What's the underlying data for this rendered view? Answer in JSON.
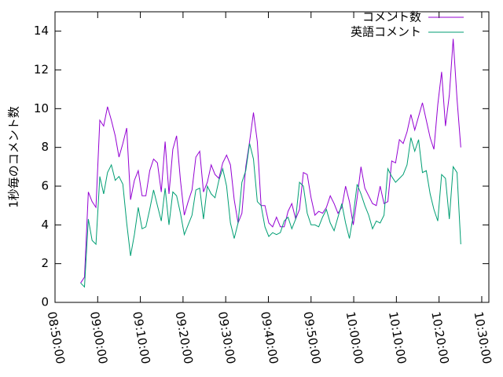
{
  "chart_data": {
    "type": "line",
    "ylabel": "1秒毎のコメント数",
    "x": [
      "08:56:00",
      "08:56:54",
      "08:57:48",
      "08:58:42",
      "08:59:36",
      "09:00:30",
      "09:01:24",
      "09:02:18",
      "09:03:12",
      "09:04:06",
      "09:05:00",
      "09:05:54",
      "09:06:48",
      "09:07:42",
      "09:08:36",
      "09:09:30",
      "09:10:24",
      "09:11:18",
      "09:12:12",
      "09:13:06",
      "09:14:00",
      "09:14:54",
      "09:15:48",
      "09:16:42",
      "09:17:36",
      "09:18:30",
      "09:19:24",
      "09:20:18",
      "09:21:12",
      "09:22:06",
      "09:23:00",
      "09:23:54",
      "09:24:48",
      "09:25:42",
      "09:26:36",
      "09:27:30",
      "09:28:24",
      "09:29:18",
      "09:30:12",
      "09:31:06",
      "09:32:00",
      "09:32:54",
      "09:33:48",
      "09:34:42",
      "09:35:36",
      "09:36:30",
      "09:37:24",
      "09:38:18",
      "09:39:12",
      "09:40:06",
      "09:41:00",
      "09:41:54",
      "09:42:48",
      "09:43:42",
      "09:44:36",
      "09:45:30",
      "09:46:24",
      "09:47:18",
      "09:48:12",
      "09:49:06",
      "09:50:00",
      "09:50:54",
      "09:51:48",
      "09:52:42",
      "09:53:36",
      "09:54:30",
      "09:55:24",
      "09:56:18",
      "09:57:12",
      "09:58:06",
      "09:59:00",
      "09:59:54",
      "10:00:48",
      "10:01:42",
      "10:02:36",
      "10:03:30",
      "10:04:24",
      "10:05:18",
      "10:06:12",
      "10:07:06",
      "10:08:00",
      "10:08:54",
      "10:09:48",
      "10:10:42",
      "10:11:36",
      "10:12:30",
      "10:13:24",
      "10:14:18",
      "10:15:12",
      "10:16:06",
      "10:17:00",
      "10:17:54",
      "10:18:48",
      "10:19:42",
      "10:20:36",
      "10:21:30",
      "10:22:24",
      "10:23:18",
      "10:24:12",
      "10:25:06"
    ],
    "series": [
      {
        "name": "コメント数",
        "color": "#9400d3",
        "values": [
          1.0,
          1.3,
          5.7,
          5.2,
          4.9,
          9.4,
          9.1,
          10.1,
          9.4,
          8.6,
          7.5,
          8.2,
          9.0,
          5.3,
          6.3,
          6.8,
          5.5,
          5.5,
          6.8,
          7.4,
          7.2,
          5.7,
          8.3,
          5.6,
          7.9,
          8.6,
          6.3,
          4.5,
          5.2,
          5.8,
          7.5,
          7.8,
          5.7,
          6.2,
          7.1,
          6.6,
          6.4,
          7.2,
          7.6,
          7.1,
          5.3,
          4.1,
          4.6,
          7.0,
          8.3,
          9.8,
          8.3,
          5.0,
          5.0,
          4.1,
          3.9,
          4.4,
          3.9,
          3.9,
          4.7,
          5.1,
          4.3,
          4.8,
          6.7,
          6.6,
          5.4,
          4.5,
          4.7,
          4.6,
          4.9,
          5.5,
          5.1,
          4.6,
          4.9,
          6.0,
          5.2,
          4.0,
          5.4,
          7.0,
          5.9,
          5.5,
          5.1,
          5.0,
          6.0,
          5.1,
          5.2,
          7.3,
          7.2,
          8.4,
          8.2,
          8.8,
          9.7,
          8.9,
          9.6,
          10.3,
          9.4,
          8.5,
          7.9,
          10.2,
          11.9,
          9.1,
          10.7,
          13.6,
          10.5,
          8.0
        ]
      },
      {
        "name": "英語コメント",
        "color": "#009e73",
        "values": [
          1.0,
          0.8,
          4.3,
          3.2,
          3.0,
          6.5,
          5.6,
          6.7,
          7.1,
          6.3,
          6.5,
          6.1,
          4.1,
          2.4,
          3.5,
          4.9,
          3.8,
          3.9,
          4.8,
          5.8,
          5.0,
          4.2,
          5.9,
          4.0,
          5.7,
          5.5,
          4.6,
          3.5,
          4.0,
          4.5,
          5.8,
          5.9,
          4.3,
          6.0,
          5.6,
          5.4,
          6.3,
          6.9,
          6.0,
          4.1,
          3.3,
          4.1,
          6.2,
          6.8,
          8.2,
          7.4,
          5.2,
          5.0,
          3.9,
          3.4,
          3.6,
          3.5,
          3.6,
          4.2,
          4.4,
          3.8,
          4.3,
          6.2,
          6.0,
          4.6,
          4.0,
          4.0,
          3.9,
          4.4,
          4.8,
          4.1,
          3.7,
          4.4,
          5.1,
          4.1,
          3.3,
          4.5,
          6.1,
          5.6,
          5.0,
          4.5,
          3.8,
          4.2,
          4.1,
          4.5,
          6.9,
          6.5,
          6.2,
          6.4,
          6.6,
          7.1,
          8.5,
          7.8,
          8.4,
          6.7,
          6.8,
          5.6,
          4.8,
          4.2,
          6.6,
          6.4,
          4.3,
          7.0,
          6.7,
          3.0
        ]
      }
    ],
    "xlim": [
      "08:50:00",
      "10:31:40"
    ],
    "xticks": [
      "08:50:00",
      "09:00:00",
      "09:10:00",
      "09:20:00",
      "09:30:00",
      "09:40:00",
      "09:50:00",
      "10:00:00",
      "10:10:00",
      "10:20:00",
      "10:30:00"
    ],
    "ylim": [
      0,
      15
    ],
    "yticks": [
      0,
      2,
      4,
      6,
      8,
      10,
      12,
      14
    ],
    "legend": "top-right"
  }
}
